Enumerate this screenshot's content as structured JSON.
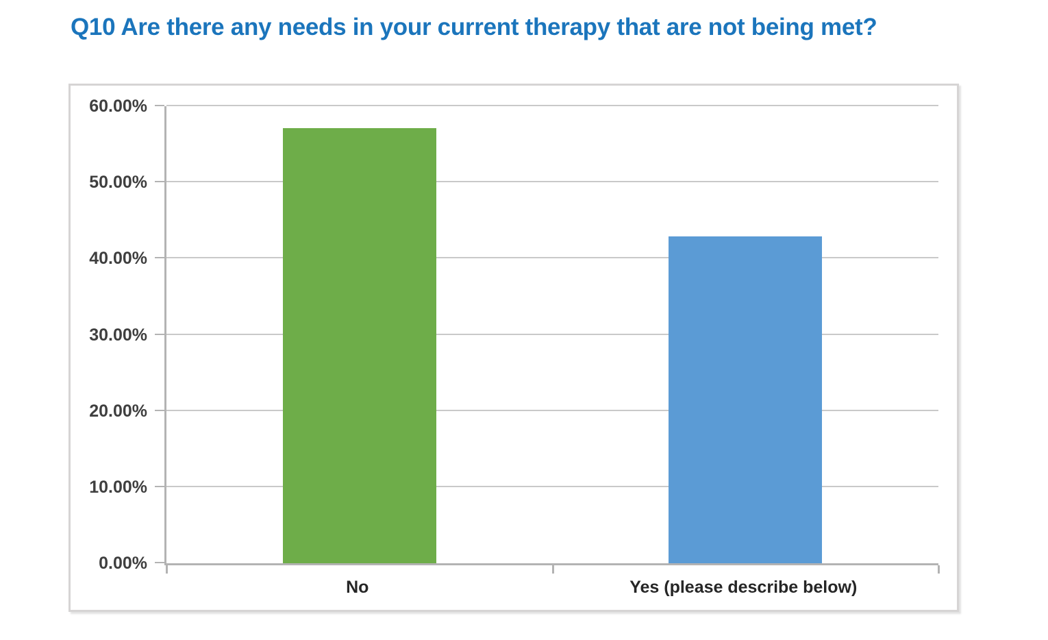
{
  "chart_data": {
    "type": "bar",
    "title": "Q10 Are there any needs in your current therapy that are not being met?",
    "categories": [
      "No",
      "Yes (please describe below)"
    ],
    "values": [
      57.1,
      42.9
    ],
    "bar_colors": [
      "#6EAD49",
      "#5B9BD5"
    ],
    "ylim": [
      0,
      60
    ],
    "yticks": [
      0,
      10,
      20,
      30,
      40,
      50,
      60
    ],
    "ytick_labels": [
      "0.00%",
      "10.00%",
      "20.00%",
      "30.00%",
      "40.00%",
      "50.00%",
      "60.00%"
    ],
    "xlabel": "",
    "ylabel": "",
    "grid": true,
    "legend": "none",
    "colors": {
      "title": "#1B75BC",
      "gridline": "#C9C9C9",
      "axis": "#B3B3B3",
      "tick_label": "#3F3F3F",
      "category_label": "#262626",
      "chart_border": "#D6D4D4"
    }
  }
}
